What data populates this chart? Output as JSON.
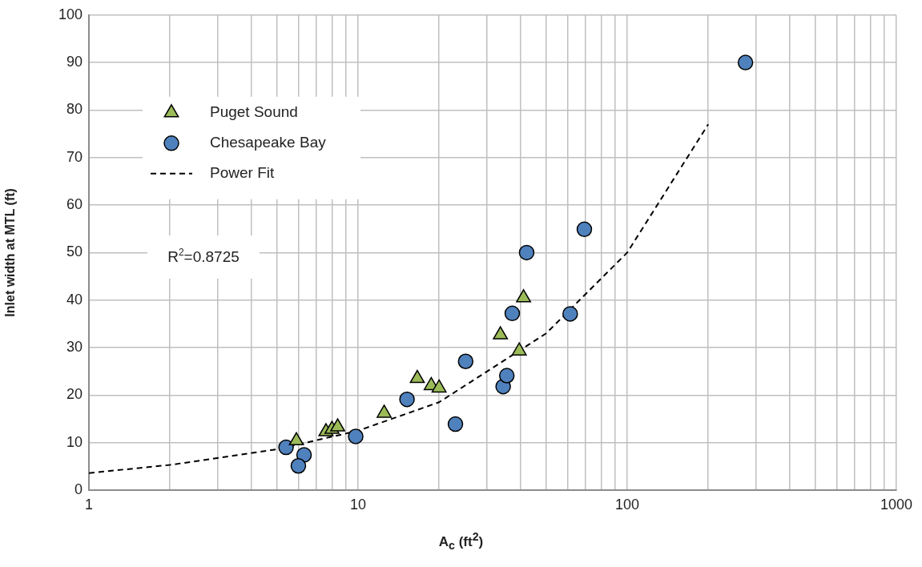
{
  "chart_data": {
    "type": "scatter",
    "xlabel": "A$_{c}$ (ft$^{2}$)",
    "ylabel": "Inlet width at MTL (ft)",
    "log": "x",
    "grid": true,
    "legend": "top left",
    "xlim": [
      1,
      1000
    ],
    "xticks": [
      1,
      {
        "value": 2,
        "label": null
      },
      {
        "value": 3,
        "label": null
      },
      {
        "value": 4,
        "label": null
      },
      {
        "value": 5,
        "label": null
      },
      {
        "value": 6,
        "label": null
      },
      {
        "value": 7,
        "label": null
      },
      {
        "value": 8,
        "label": null
      },
      {
        "value": 9,
        "label": null
      },
      10,
      {
        "value": 20,
        "label": null
      },
      {
        "value": 30,
        "label": null
      },
      {
        "value": 40,
        "label": null
      },
      {
        "value": 50,
        "label": null
      },
      {
        "value": 60,
        "label": null
      },
      {
        "value": 70,
        "label": null
      },
      {
        "value": 80,
        "label": null
      },
      {
        "value": 90,
        "label": null
      },
      100,
      {
        "value": 200,
        "label": null
      },
      {
        "value": 300,
        "label": null
      },
      {
        "value": 400,
        "label": null
      },
      {
        "value": 500,
        "label": null
      },
      {
        "value": 600,
        "label": null
      },
      {
        "value": 700,
        "label": null
      },
      {
        "value": 800,
        "label": null
      },
      {
        "value": 900,
        "label": null
      },
      1000
    ],
    "ylim": [
      0,
      100
    ],
    "yticks": [
      0,
      10,
      20,
      30,
      40,
      50,
      60,
      70,
      80,
      90,
      100
    ],
    "annotations": [
      "R$^{2}$=0.8725"
    ],
    "series": [
      {
        "name": "Puget Sound",
        "type": "scatter",
        "marker": "triangle",
        "color": "#9bbb59",
        "x": [
          5.9,
          7.6,
          8,
          8.4,
          12.5,
          16.6,
          18.7,
          20,
          33.8,
          39.7,
          41.2
        ],
        "values": [
          10.4,
          12.3,
          12.8,
          13.3,
          16.2,
          23.5,
          22,
          21.5,
          32.7,
          29.3,
          40.5
        ]
      },
      {
        "name": "Chesapeake Bay",
        "type": "scatter",
        "marker": "circle",
        "color": "#4f81bd",
        "x": [
          5.4,
          6.3,
          6,
          9.8,
          15.2,
          23,
          25.1,
          34.6,
          35.7,
          37.4,
          42.3,
          61.4,
          69.3,
          275
        ],
        "values": [
          9,
          7.4,
          5.1,
          11.3,
          19.1,
          13.9,
          27.1,
          21.8,
          24.1,
          37.2,
          50,
          37.1,
          54.9,
          90
        ]
      },
      {
        "name": "Power Fit",
        "type": "line",
        "marker": "none",
        "line_style": "dashed",
        "color": "#000000",
        "x": [
          1,
          2,
          5,
          10,
          20,
          50,
          100,
          200
        ],
        "values": [
          3.6,
          5.3,
          8.6,
          12.5,
          18.5,
          33,
          50,
          77
        ]
      }
    ]
  }
}
